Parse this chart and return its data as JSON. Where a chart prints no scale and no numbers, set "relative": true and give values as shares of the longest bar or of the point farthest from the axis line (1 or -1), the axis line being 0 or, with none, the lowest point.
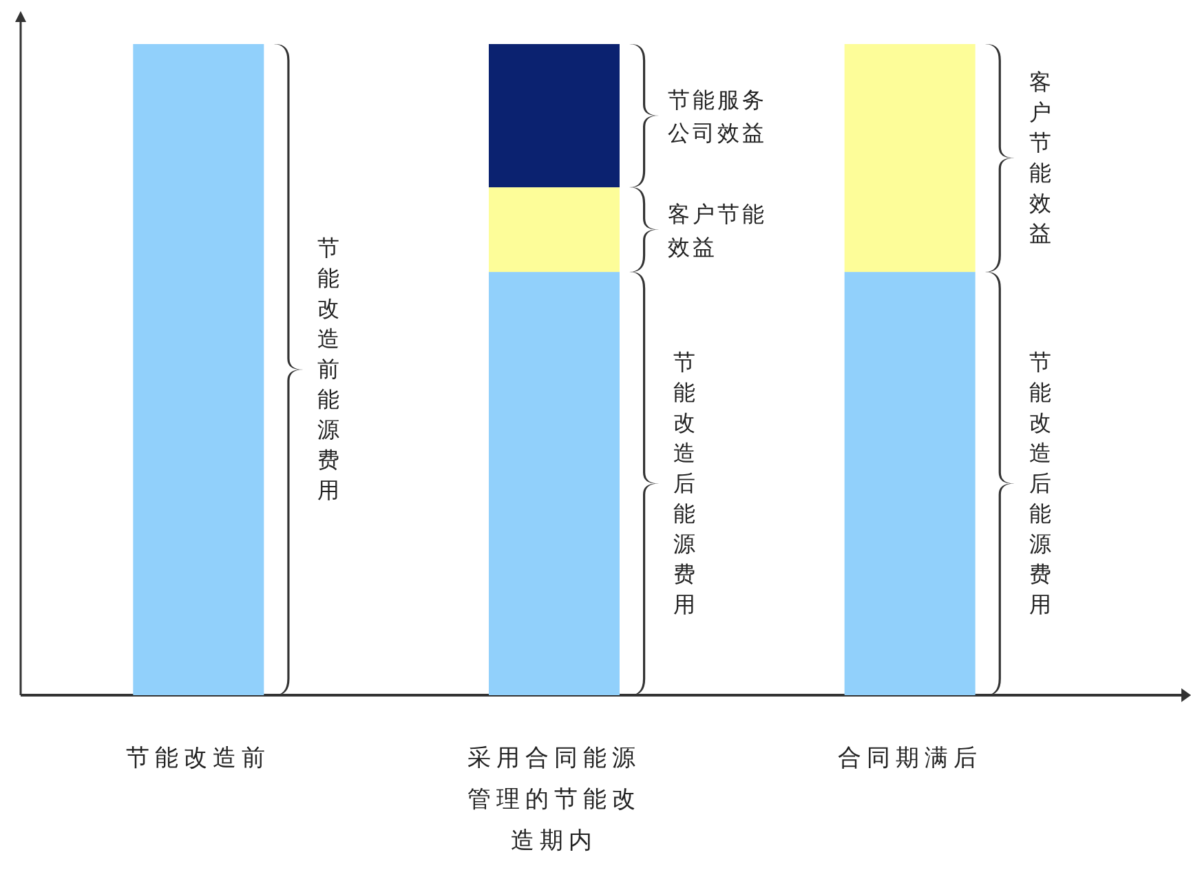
{
  "chart_data": {
    "type": "bar",
    "stacked": true,
    "relative": true,
    "categories": [
      "节能改造前",
      "采用合同能源管理的节能改造期内",
      "合同期满后"
    ],
    "series": [
      {
        "color": "#91d0fb",
        "values": [
          1,
          0.65,
          0.65
        ]
      },
      {
        "color": "#fdfd99",
        "values": [
          null,
          0.13,
          0.35
        ]
      },
      {
        "color": "#0b2270",
        "values": [
          null,
          0.22,
          null
        ]
      }
    ],
    "annotations": [
      "节能改造前能源费用",
      "节能服务公司效益",
      "客户节能效益",
      "节能改造后能源费用",
      "客户节能效益",
      "节能改造后能源费用"
    ]
  }
}
